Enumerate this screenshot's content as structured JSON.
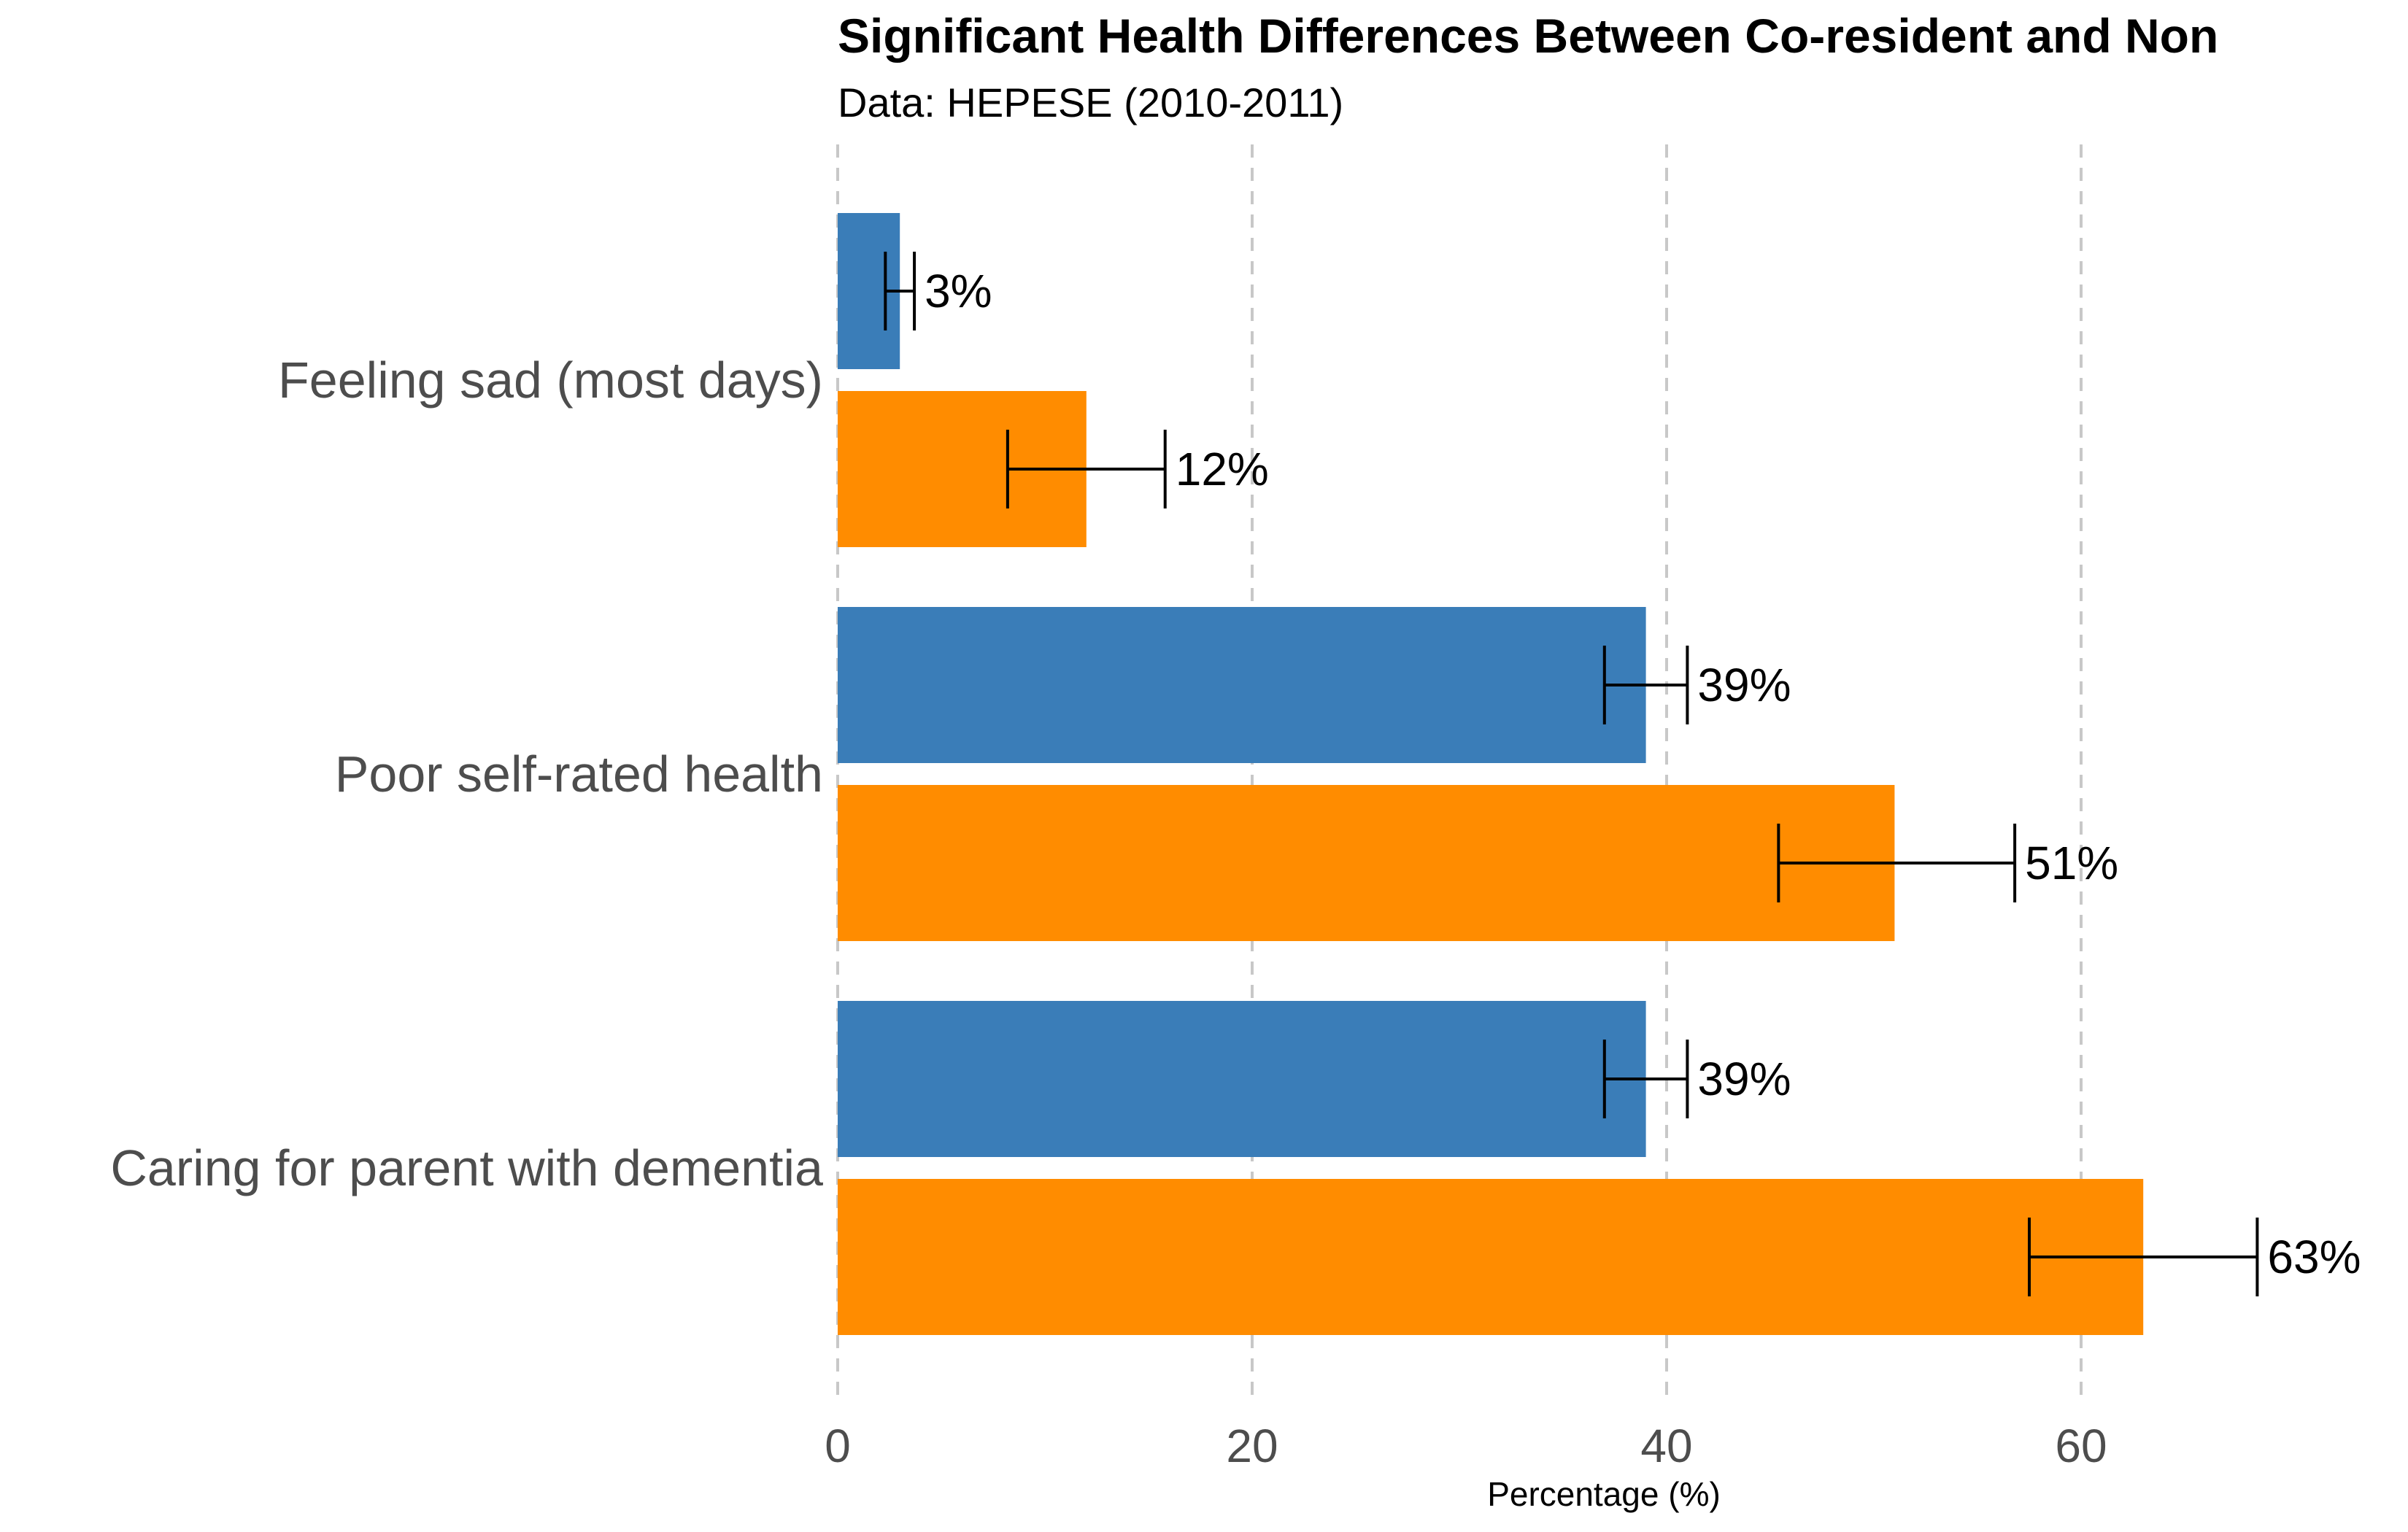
{
  "chart_data": {
    "type": "bar",
    "orientation": "horizontal",
    "title": "Significant Health Differences Between Co-resident and Non",
    "subtitle": "Data: HEPESE (2010-2011)",
    "xlabel": "Percentage (%)",
    "ylabel": "",
    "xlim": [
      0,
      75
    ],
    "xticks": [
      0,
      20,
      40,
      60
    ],
    "xtick_labels": [
      "0",
      "20",
      "40",
      "60"
    ],
    "grid": "vertical-dashed",
    "categories": [
      "Feeling sad (most days)",
      "Poor self-rated health",
      "Caring for parent with dementia"
    ],
    "colors": [
      "#3a7db8",
      "#ff8c00"
    ],
    "series": [
      {
        "values": [
          3,
          39,
          39
        ],
        "error_low": [
          2.3,
          37,
          37
        ],
        "error_high": [
          3.7,
          41,
          41
        ],
        "labels": [
          "3%",
          "39%",
          "39%"
        ]
      },
      {
        "values": [
          12,
          51,
          63
        ],
        "error_low": [
          8.2,
          45.4,
          57.5
        ],
        "error_high": [
          15.8,
          56.8,
          68.5
        ],
        "labels": [
          "12%",
          "51%",
          "63%"
        ]
      }
    ]
  }
}
